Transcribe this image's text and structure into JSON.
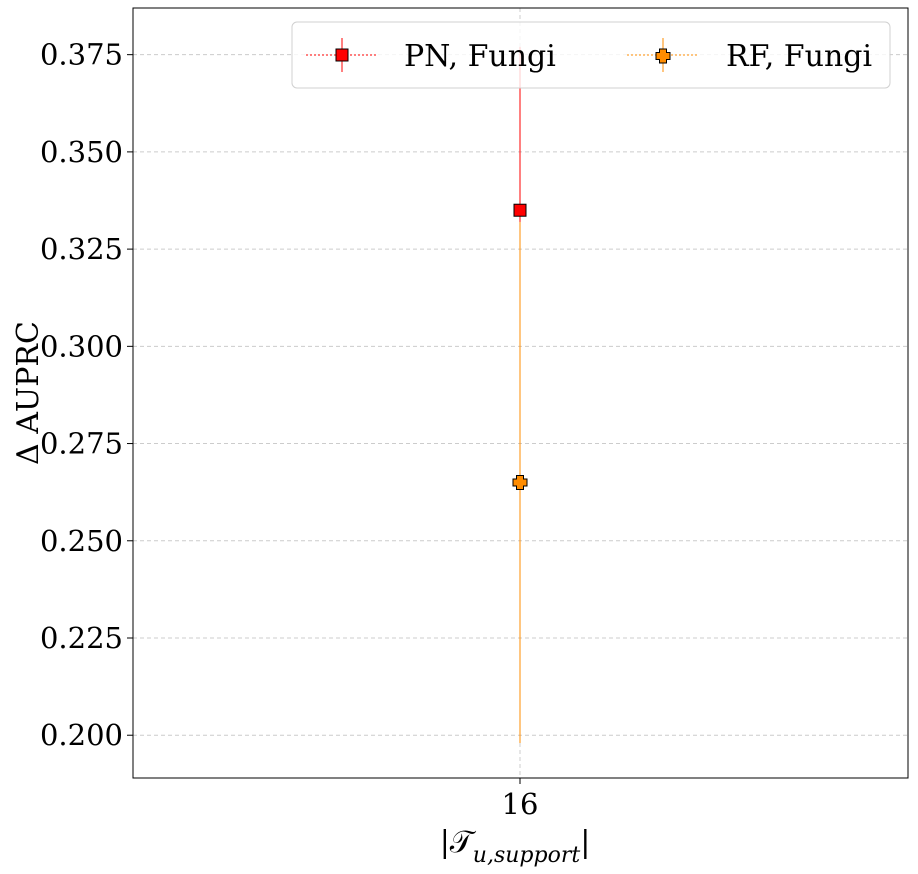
{
  "chart_data": {
    "type": "scatter",
    "title": "",
    "xlabel": "|𝒯u,support|",
    "xlabel_main": "|𝒯",
    "xlabel_sub": "u,support",
    "xlabel_close": "|",
    "ylabel": "Δ AUPRC",
    "x": [
      16
    ],
    "x_tick_labels": [
      "16"
    ],
    "ylim": [
      0.189,
      0.387
    ],
    "y_ticks": [
      0.2,
      0.225,
      0.25,
      0.275,
      0.3,
      0.325,
      0.35,
      0.375
    ],
    "y_tick_labels": [
      "0.200",
      "0.225",
      "0.250",
      "0.275",
      "0.300",
      "0.325",
      "0.350",
      "0.375"
    ],
    "grid": true,
    "legend_position": "top-right",
    "series": [
      {
        "name": "PN, Fungi",
        "marker": "square",
        "color": "#ff0000",
        "points": [
          {
            "x": 16,
            "y": 0.335,
            "yerr_low": 0.293,
            "yerr_high": 0.377
          }
        ]
      },
      {
        "name": "RF, Fungi",
        "marker": "plus",
        "color": "#ff8c00",
        "points": [
          {
            "x": 16,
            "y": 0.265,
            "yerr_low": 0.198,
            "yerr_high": 0.332
          }
        ]
      }
    ]
  }
}
